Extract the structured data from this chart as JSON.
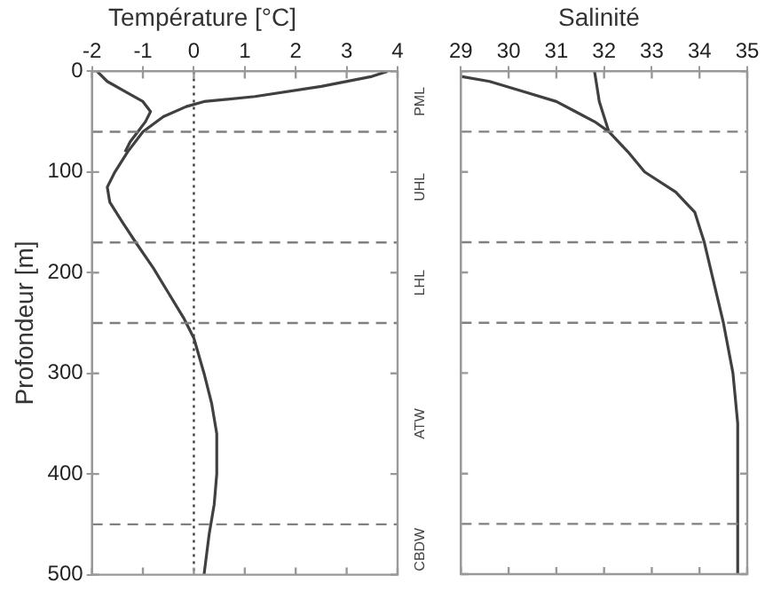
{
  "chart_data": [
    {
      "type": "line",
      "title": "Température [°C]",
      "ylabel": "Profondeur [m]",
      "xlim": [
        -2,
        4
      ],
      "xticks": [
        -2,
        -1,
        0,
        1,
        2,
        3,
        4
      ],
      "ylim": [
        500,
        0
      ],
      "yticks": [
        0,
        100,
        200,
        300,
        400,
        500
      ],
      "grid": false,
      "legend": false,
      "marker": "none",
      "line_style": "solid",
      "series": [
        {
          "color": "#404040",
          "x": [
            3.8,
            3.5,
            2.5,
            1.2,
            0.2,
            -0.15,
            -0.6,
            -1.0,
            -1.3,
            -1.55,
            -1.7,
            -1.65,
            -1.4,
            -1.14,
            -0.8,
            -0.5,
            -0.2,
            0,
            0.2,
            0.35,
            0.45,
            0.45,
            0.4,
            0.3,
            0.2
          ],
          "values": [
            0,
            5,
            15,
            25,
            30,
            35,
            45,
            60,
            80,
            100,
            115,
            130,
            150,
            170,
            195,
            220,
            245,
            265,
            300,
            330,
            360,
            400,
            430,
            460,
            500
          ]
        },
        {
          "color": "#404040",
          "x": [
            -1.9,
            -1.7,
            -1.35,
            -1.0,
            -0.85,
            -0.95,
            -1.1,
            -1.25,
            -1.35
          ],
          "values": [
            0,
            10,
            20,
            30,
            40,
            50,
            60,
            70,
            80
          ]
        }
      ],
      "ref_lines": [
        {
          "axis": "x",
          "value": 0,
          "color": "#404040",
          "line_style": "dotted"
        },
        {
          "axis": "y",
          "value": 60,
          "color": "#808080",
          "line_style": "dashed"
        },
        {
          "axis": "y",
          "value": 170,
          "color": "#808080",
          "line_style": "dashed"
        },
        {
          "axis": "y",
          "value": 250,
          "color": "#808080",
          "line_style": "dashed"
        },
        {
          "axis": "y",
          "value": 450,
          "color": "#808080",
          "line_style": "dashed"
        }
      ],
      "annotations": [
        "PML",
        "UHL",
        "LHL",
        "ATW",
        "CBDW"
      ]
    },
    {
      "type": "line",
      "title": "Salinité",
      "xlim": [
        29,
        35
      ],
      "xticks": [
        29,
        30,
        31,
        32,
        33,
        34,
        35
      ],
      "ylim": [
        500,
        0
      ],
      "yticks": [
        0,
        100,
        200,
        300,
        400,
        500
      ],
      "tick_labels": "x",
      "grid": false,
      "legend": false,
      "marker": "none",
      "line_style": "solid",
      "series": [
        {
          "color": "#404040",
          "x": [
            29.0,
            29.6,
            30.3,
            31.0,
            31.4,
            31.8,
            32.1
          ],
          "values": [
            5,
            10,
            20,
            30,
            40,
            50,
            60
          ]
        },
        {
          "color": "#404040",
          "x": [
            31.8,
            31.85,
            31.9,
            32.0,
            32.1,
            32.5,
            32.85,
            33.5,
            33.9,
            34.1,
            34.25,
            34.5,
            34.7,
            34.8,
            34.8
          ],
          "values": [
            0,
            15,
            30,
            45,
            60,
            80,
            100,
            120,
            140,
            170,
            200,
            250,
            300,
            350,
            500
          ]
        }
      ],
      "ref_lines": [
        {
          "axis": "y",
          "value": 60,
          "color": "#808080",
          "line_style": "dashed"
        },
        {
          "axis": "y",
          "value": 170,
          "color": "#808080",
          "line_style": "dashed"
        },
        {
          "axis": "y",
          "value": 250,
          "color": "#808080",
          "line_style": "dashed"
        },
        {
          "axis": "y",
          "value": 450,
          "color": "#808080",
          "line_style": "dashed"
        }
      ]
    }
  ]
}
